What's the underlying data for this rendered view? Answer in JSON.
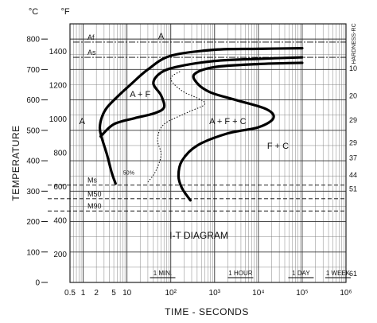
{
  "chart_data": {
    "type": "line",
    "title": "I-T DIAGRAM",
    "xlabel": "TIME - SECONDS",
    "ylabel": "TEMPERATURE",
    "x_scale": "log",
    "xlim": [
      0.5,
      1000000
    ],
    "ylim_c": [
      0,
      850
    ],
    "ylim_f": [
      0,
      1500
    ],
    "x_ticks": [
      {
        "v": 0.5,
        "label": "0.5"
      },
      {
        "v": 1,
        "label": "1"
      },
      {
        "v": 2,
        "label": "2"
      },
      {
        "v": 5,
        "label": "5"
      },
      {
        "v": 10,
        "label": "10"
      },
      {
        "v": 100,
        "label": "10²"
      },
      {
        "v": 1000,
        "label": "10³"
      },
      {
        "v": 10000,
        "label": "10⁴"
      },
      {
        "v": 100000,
        "label": "10⁵"
      },
      {
        "v": 1000000,
        "label": "10⁶"
      }
    ],
    "y_c_ticks": [
      0,
      100,
      200,
      300,
      400,
      500,
      600,
      700,
      800
    ],
    "y_f_ticks": [
      200,
      400,
      600,
      800,
      1000,
      1200,
      1400
    ],
    "left_unit": "°C",
    "right_unit": "°F",
    "hardness_title": "HARDNESS-RC",
    "hardness": [
      {
        "c": 705,
        "label": "10"
      },
      {
        "c": 615,
        "label": "20"
      },
      {
        "c": 535,
        "label": "29"
      },
      {
        "c": 460,
        "label": "29"
      },
      {
        "c": 410,
        "label": "37"
      },
      {
        "c": 355,
        "label": "44"
      },
      {
        "c": 308,
        "label": "51"
      },
      {
        "c": 30,
        "label": "61"
      }
    ],
    "time_markers": [
      {
        "v": 60,
        "label": "1 MIN."
      },
      {
        "v": 3600,
        "label": "1 HOUR"
      },
      {
        "v": 86400,
        "label": "1 DAY"
      },
      {
        "v": 604800,
        "label": "1 WEEK"
      }
    ],
    "reference_lines": [
      {
        "c": 790,
        "label": "Af",
        "style": "dashdot"
      },
      {
        "c": 740,
        "label": "As",
        "style": "dashdot"
      },
      {
        "c": 320,
        "label": "Ms",
        "style": "dash"
      },
      {
        "c": 275,
        "label": "M50",
        "style": "dash"
      },
      {
        "c": 235,
        "label": "M90",
        "style": "dash"
      }
    ],
    "series": [
      {
        "points": [
          [
            5.5,
            325
          ],
          [
            4.5,
            360
          ],
          [
            3.5,
            420
          ],
          [
            2.6,
            480
          ],
          [
            2.4,
            510
          ],
          [
            2.7,
            545
          ],
          [
            3.5,
            575
          ],
          [
            6,
            610
          ],
          [
            12,
            650
          ],
          [
            30,
            700
          ],
          [
            100,
            745
          ],
          [
            1000,
            765
          ],
          [
            10000,
            768
          ],
          [
            100000,
            770
          ]
        ],
        "style": "heavy"
      },
      {
        "points": [
          [
            2.5,
            480
          ],
          [
            5,
            520
          ],
          [
            15,
            540
          ],
          [
            40,
            555
          ],
          [
            70,
            575
          ],
          [
            60,
            615
          ],
          [
            40,
            655
          ],
          [
            60,
            690
          ],
          [
            150,
            710
          ],
          [
            1000,
            728
          ],
          [
            10000,
            735
          ],
          [
            100000,
            740
          ]
        ],
        "style": "heavy"
      },
      {
        "points": [
          [
            280,
            270
          ],
          [
            180,
            310
          ],
          [
            150,
            350
          ],
          [
            180,
            400
          ],
          [
            400,
            450
          ],
          [
            2000,
            490
          ],
          [
            10000,
            510
          ],
          [
            22000,
            540
          ],
          [
            15000,
            570
          ],
          [
            3000,
            600
          ],
          [
            800,
            625
          ],
          [
            400,
            655
          ],
          [
            350,
            685
          ],
          [
            1000,
            708
          ],
          [
            10000,
            718
          ],
          [
            100000,
            722
          ]
        ],
        "style": "heavy"
      },
      {
        "points": [
          [
            30,
            330
          ],
          [
            45,
            365
          ],
          [
            60,
            420
          ],
          [
            50,
            470
          ],
          [
            70,
            520
          ],
          [
            250,
            560
          ],
          [
            600,
            590
          ],
          [
            180,
            630
          ],
          [
            100,
            670
          ],
          [
            170,
            695
          ]
        ],
        "style": "dotted"
      }
    ],
    "annotations": [
      {
        "text": "A",
        "x": 60,
        "c": 800
      },
      {
        "text": "A + F",
        "x": 20,
        "c": 610
      },
      {
        "text": "A",
        "x": 0.95,
        "c": 520
      },
      {
        "text": "A + F + C",
        "x": 2000,
        "c": 520
      },
      {
        "text": "F + C",
        "x": 28000,
        "c": 440
      },
      {
        "text": "50%",
        "x": 11,
        "c": 355
      }
    ]
  }
}
